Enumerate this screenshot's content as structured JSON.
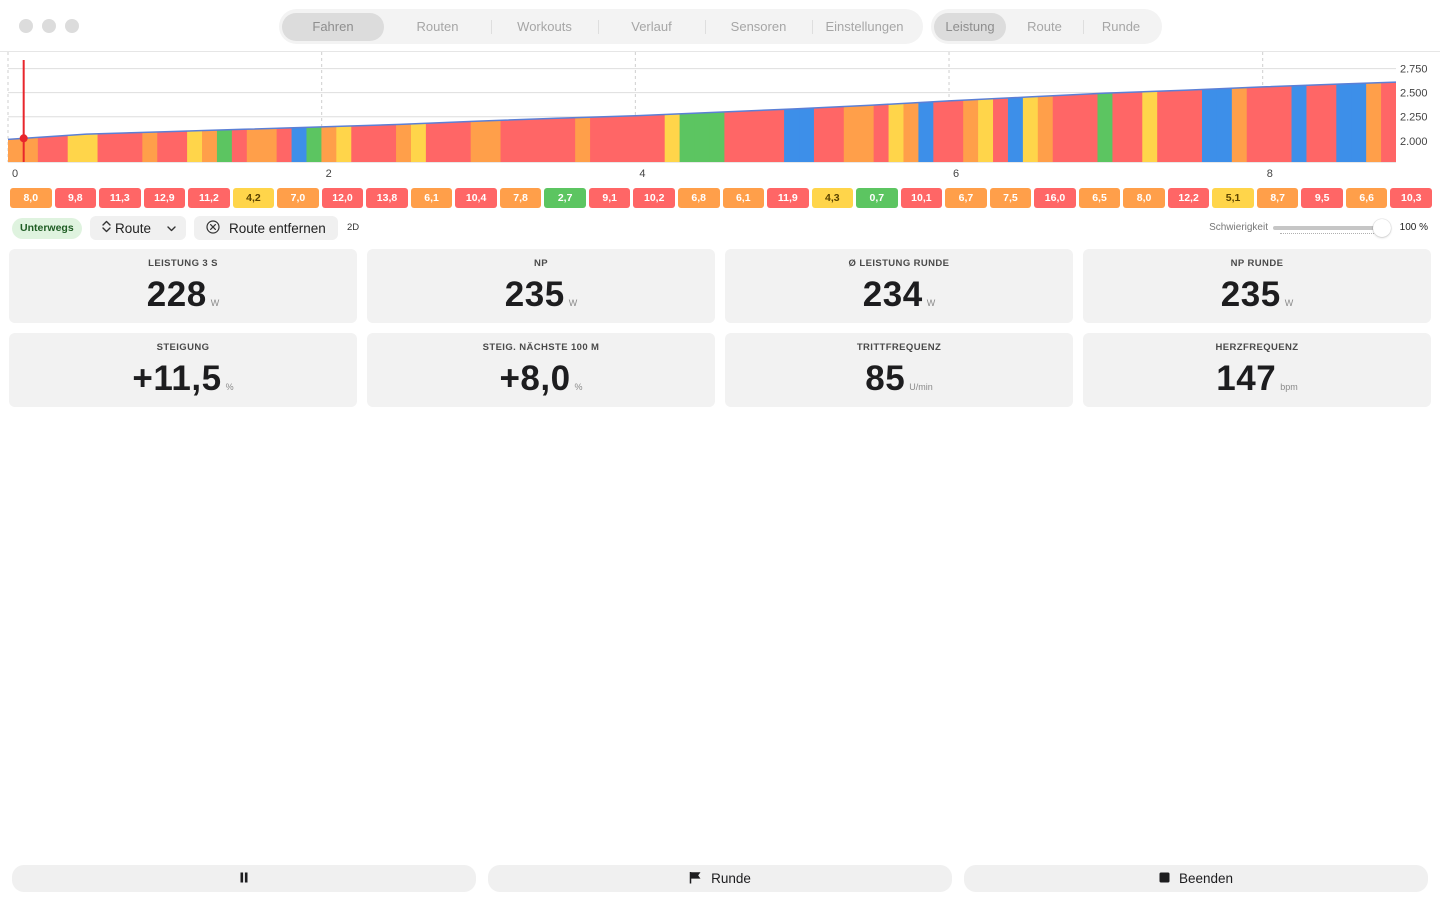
{
  "window": {
    "main_tabs": [
      {
        "label": "Fahren",
        "active": true
      },
      {
        "label": "Routen",
        "active": false
      },
      {
        "label": "Workouts",
        "active": false
      },
      {
        "label": "Verlauf",
        "active": false
      },
      {
        "label": "Sensoren",
        "active": false
      },
      {
        "label": "Einstellungen",
        "active": false
      }
    ],
    "view_tabs": [
      {
        "label": "Leistung",
        "active": true
      },
      {
        "label": "Route",
        "active": false
      },
      {
        "label": "Runde",
        "active": false
      }
    ]
  },
  "chart_data": {
    "type": "area",
    "x_ticks": [
      "0",
      "2",
      "4",
      "6",
      "8"
    ],
    "y_ticks": [
      "2.750",
      "2.500",
      "2.250",
      "2.000"
    ],
    "xlim": [
      0,
      8.85
    ],
    "ylim": [
      1780,
      2860
    ],
    "elevation": [
      [
        0,
        2015
      ],
      [
        0.5,
        2070
      ],
      [
        1,
        2095
      ],
      [
        1.5,
        2120
      ],
      [
        2,
        2145
      ],
      [
        2.5,
        2170
      ],
      [
        3,
        2205
      ],
      [
        3.5,
        2235
      ],
      [
        4,
        2260
      ],
      [
        4.5,
        2295
      ],
      [
        5,
        2330
      ],
      [
        5.5,
        2370
      ],
      [
        6,
        2415
      ],
      [
        6.5,
        2455
      ],
      [
        7,
        2495
      ],
      [
        7.5,
        2525
      ],
      [
        8,
        2560
      ],
      [
        8.5,
        2590
      ],
      [
        8.85,
        2610
      ]
    ],
    "position_km": 0.1,
    "grade_color_scale": {
      "blue": "#3d8fe9",
      "green": "#5cc561",
      "yellow": "#ffd54a",
      "orange": "#ff9f4a",
      "red": "#ff6666"
    },
    "grade_strips": [
      "orange",
      "orange",
      "red",
      "red",
      "yellow",
      "yellow",
      "red",
      "red",
      "red",
      "orange",
      "red",
      "red",
      "yellow",
      "orange",
      "green",
      "red",
      "orange",
      "orange",
      "red",
      "blue",
      "green",
      "orange",
      "yellow",
      "red",
      "red",
      "red",
      "orange",
      "yellow",
      "red",
      "red",
      "red",
      "orange",
      "orange",
      "red",
      "red",
      "red",
      "red",
      "red",
      "orange",
      "red",
      "red",
      "red",
      "red",
      "red",
      "yellow",
      "green",
      "green",
      "green",
      "red",
      "red",
      "red",
      "red",
      "blue",
      "blue",
      "red",
      "red",
      "orange",
      "orange",
      "red",
      "yellow",
      "orange",
      "blue",
      "red",
      "red",
      "orange",
      "yellow",
      "red",
      "blue",
      "yellow",
      "orange",
      "red",
      "red",
      "red",
      "green",
      "red",
      "red",
      "yellow",
      "red",
      "red",
      "red",
      "blue",
      "blue",
      "orange",
      "red",
      "red",
      "red",
      "blue",
      "red",
      "red",
      "blue",
      "blue",
      "orange",
      "red"
    ]
  },
  "segments": [
    {
      "value": "8,0",
      "color": "orange"
    },
    {
      "value": "9,8",
      "color": "red"
    },
    {
      "value": "11,3",
      "color": "red"
    },
    {
      "value": "12,9",
      "color": "red"
    },
    {
      "value": "11,2",
      "color": "red"
    },
    {
      "value": "4,2",
      "color": "yellow"
    },
    {
      "value": "7,0",
      "color": "orange"
    },
    {
      "value": "12,0",
      "color": "red"
    },
    {
      "value": "13,8",
      "color": "red"
    },
    {
      "value": "6,1",
      "color": "orange"
    },
    {
      "value": "10,4",
      "color": "red"
    },
    {
      "value": "7,8",
      "color": "orange"
    },
    {
      "value": "2,7",
      "color": "green"
    },
    {
      "value": "9,1",
      "color": "red"
    },
    {
      "value": "10,2",
      "color": "red"
    },
    {
      "value": "6,8",
      "color": "orange"
    },
    {
      "value": "6,1",
      "color": "orange"
    },
    {
      "value": "11,9",
      "color": "red"
    },
    {
      "value": "4,3",
      "color": "yellow"
    },
    {
      "value": "0,7",
      "color": "green"
    },
    {
      "value": "10,1",
      "color": "red"
    },
    {
      "value": "6,7",
      "color": "orange"
    },
    {
      "value": "7,5",
      "color": "orange"
    },
    {
      "value": "16,0",
      "color": "red"
    },
    {
      "value": "6,5",
      "color": "orange"
    },
    {
      "value": "8,0",
      "color": "orange"
    },
    {
      "value": "12,2",
      "color": "red"
    },
    {
      "value": "5,1",
      "color": "yellow"
    },
    {
      "value": "8,7",
      "color": "orange"
    },
    {
      "value": "9,5",
      "color": "red"
    },
    {
      "value": "6,6",
      "color": "orange"
    },
    {
      "value": "10,3",
      "color": "red"
    }
  ],
  "controls": {
    "status": "Unterwegs",
    "route_select": "Route",
    "remove_route": "Route entfernen",
    "view_mode": "2D",
    "difficulty_label": "Schwierigkeit",
    "difficulty_value": "100 %",
    "difficulty_percent": 100
  },
  "metrics": [
    {
      "title": "LEISTUNG 3 S",
      "value": "228",
      "unit": "W"
    },
    {
      "title": "NP",
      "value": "235",
      "unit": "W"
    },
    {
      "title": "Ø LEISTUNG RUNDE",
      "value": "234",
      "unit": "W"
    },
    {
      "title": "NP RUNDE",
      "value": "235",
      "unit": "W"
    },
    {
      "title": "STEIGUNG",
      "value": "+11,5",
      "unit": "%"
    },
    {
      "title": "STEIG. NÄCHSTE 100 M",
      "value": "+8,0",
      "unit": "%"
    },
    {
      "title": "TRITTFREQUENZ",
      "value": "85",
      "unit": "U/min"
    },
    {
      "title": "HERZFREQUENZ",
      "value": "147",
      "unit": "bpm"
    }
  ],
  "bottom_bar": {
    "pause_icon": "pause-icon",
    "lap_label": "Runde",
    "lap_icon": "flag-icon",
    "end_label": "Beenden",
    "end_icon": "stop-icon"
  }
}
